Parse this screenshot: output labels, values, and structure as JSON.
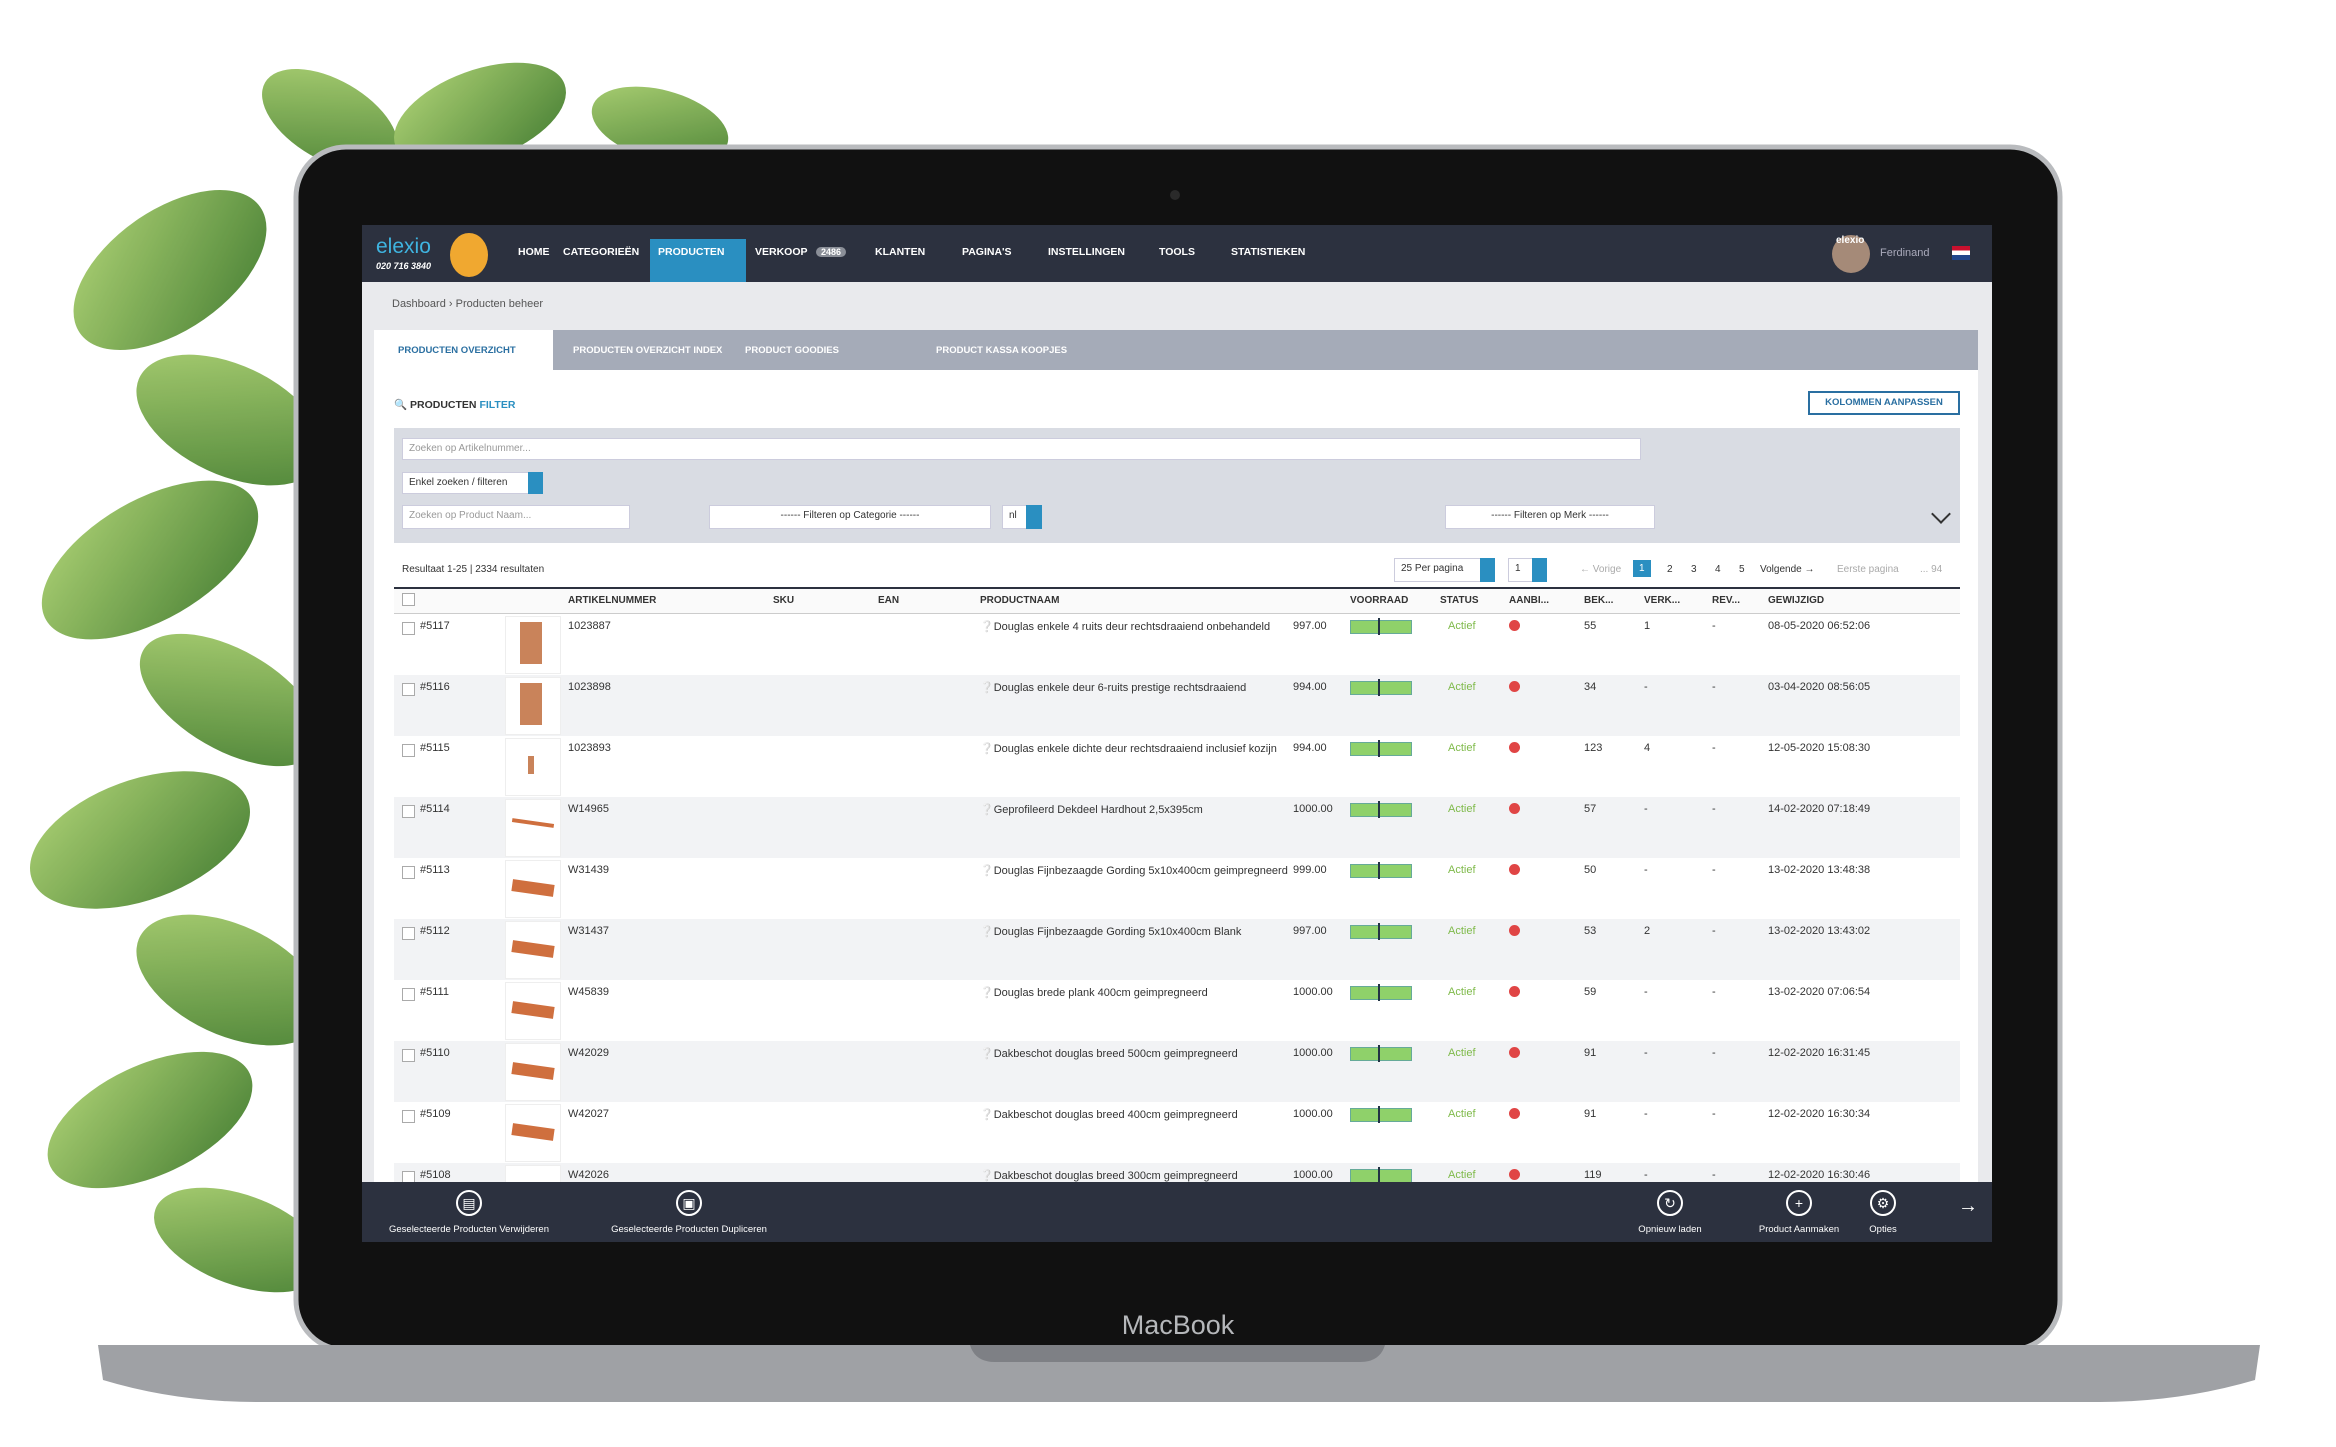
{
  "logo": {
    "name": "elexio",
    "phone": "020 716 3840"
  },
  "nav": {
    "items": [
      "HOME",
      "CATEGORIEËN",
      "PRODUCTEN",
      "VERKOOP",
      "KLANTEN",
      "PAGINA'S",
      "INSTELLINGEN",
      "TOOLS",
      "STATISTIEKEN"
    ],
    "badge": "2486",
    "user": "Ferdinand",
    "avatar_label": "elexio"
  },
  "breadcrumb": [
    "Dashboard",
    "Producten beheer"
  ],
  "tabs": [
    "PRODUCTEN OVERZICHT",
    "PRODUCTEN OVERZICHT INDEX",
    "PRODUCT GOODIES",
    "PRODUCT KASSA KOOPJES"
  ],
  "filter": {
    "title": "PRODUCTEN",
    "title_accent": "FILTER",
    "columns_button": "KOLOMMEN AANPASSEN",
    "article_placeholder": "Zoeken op Artikelnummer...",
    "mode": "Enkel zoeken / filteren",
    "name_placeholder": "Zoeken op Product Naam...",
    "category": "------ Filteren op Categorie ------",
    "language": "nl",
    "brand": "------ Filteren op Merk ------"
  },
  "results": {
    "summary": "Resultaat 1-25 | 2334 resultaten",
    "per_page": "25 Per pagina",
    "page_select": "1",
    "pages": [
      "← Vorige",
      "1",
      "2",
      "3",
      "4",
      "5",
      "Volgende →",
      "Eerste pagina",
      "... 94"
    ]
  },
  "table": {
    "columns": [
      "ARTIKELNUMMER",
      "SKU",
      "EAN",
      "PRODUCTNAAM",
      "VOORRAAD",
      "STATUS",
      "AANBI...",
      "BEK...",
      "VERK...",
      "REV...",
      "GEWIJZIGD"
    ],
    "rows": [
      [
        "#5117",
        "1023887",
        "Douglas enkele 4 ruits deur rechtsdraaiend onbehandeld",
        "997.00",
        "Actief",
        "55",
        "1",
        "-",
        "08-05-2020 06:52:06"
      ],
      [
        "#5116",
        "1023898",
        "Douglas enkele deur 6-ruits prestige rechtsdraaiend",
        "994.00",
        "Actief",
        "34",
        "-",
        "-",
        "03-04-2020 08:56:05"
      ],
      [
        "#5115",
        "1023893",
        "Douglas enkele dichte deur rechtsdraaiend inclusief kozijn",
        "994.00",
        "Actief",
        "123",
        "4",
        "-",
        "12-05-2020 15:08:30"
      ],
      [
        "#5114",
        "W14965",
        "Geprofileerd Dekdeel Hardhout 2,5x395cm",
        "1000.00",
        "Actief",
        "57",
        "-",
        "-",
        "14-02-2020 07:18:49"
      ],
      [
        "#5113",
        "W31439",
        "Douglas Fijnbezaagde Gording 5x10x400cm geimpregneerd",
        "999.00",
        "Actief",
        "50",
        "-",
        "-",
        "13-02-2020 13:48:38"
      ],
      [
        "#5112",
        "W31437",
        "Douglas Fijnbezaagde Gording 5x10x400cm Blank",
        "997.00",
        "Actief",
        "53",
        "2",
        "-",
        "13-02-2020 13:43:02"
      ],
      [
        "#5111",
        "W45839",
        "Douglas brede plank 400cm geimpregneerd",
        "1000.00",
        "Actief",
        "59",
        "-",
        "-",
        "13-02-2020 07:06:54"
      ],
      [
        "#5110",
        "W42029",
        "Dakbeschot douglas breed 500cm geimpregneerd",
        "1000.00",
        "Actief",
        "91",
        "-",
        "-",
        "12-02-2020 16:31:45"
      ],
      [
        "#5109",
        "W42027",
        "Dakbeschot douglas breed 400cm geimpregneerd",
        "1000.00",
        "Actief",
        "91",
        "-",
        "-",
        "12-02-2020 16:30:34"
      ],
      [
        "#5108",
        "W42026",
        "Dakbeschot douglas breed 300cm geimpregneerd",
        "1000.00",
        "Actief",
        "119",
        "-",
        "-",
        "12-02-2020 16:30:46"
      ]
    ]
  },
  "toolbar": [
    "Geselecteerde Producten Verwijderen",
    "Geselecteerde Producten Dupliceren",
    "Opnieuw laden",
    "Product Aanmaken",
    "Opties"
  ],
  "device": "MacBook"
}
